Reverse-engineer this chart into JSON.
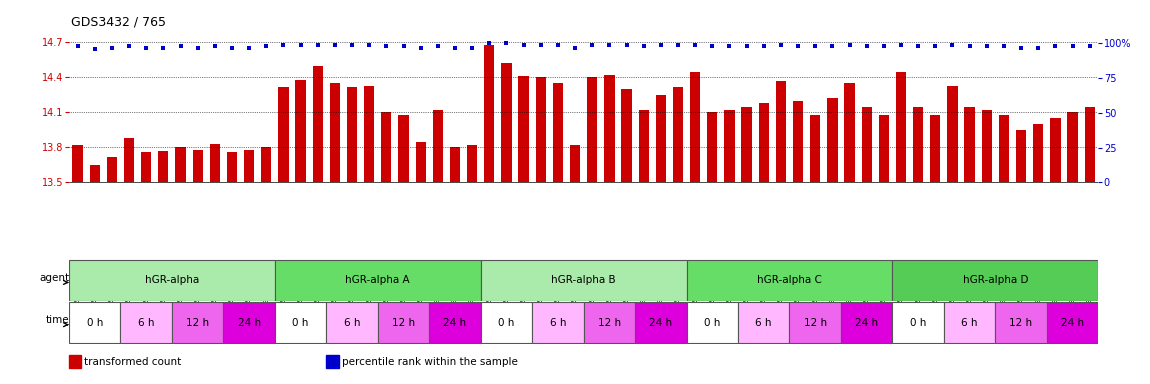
{
  "title": "GDS3432 / 765",
  "samples": [
    "GSM154259",
    "GSM154260",
    "GSM154261",
    "GSM154274",
    "GSM154275",
    "GSM154276",
    "GSM154289",
    "GSM154290",
    "GSM154291",
    "GSM154304",
    "GSM154305",
    "GSM154306",
    "GSM154262",
    "GSM154263",
    "GSM154264",
    "GSM154277",
    "GSM154278",
    "GSM154279",
    "GSM154292",
    "GSM154293",
    "GSM154294",
    "GSM154307",
    "GSM154308",
    "GSM154309",
    "GSM154265",
    "GSM154266",
    "GSM154267",
    "GSM154280",
    "GSM154281",
    "GSM154282",
    "GSM154295",
    "GSM154296",
    "GSM154297",
    "GSM154310",
    "GSM154311",
    "GSM154312",
    "GSM154268",
    "GSM154269",
    "GSM154270",
    "GSM154283",
    "GSM154284",
    "GSM154285",
    "GSM154298",
    "GSM154299",
    "GSM154300",
    "GSM154313",
    "GSM154314",
    "GSM154315",
    "GSM154271",
    "GSM154272",
    "GSM154273",
    "GSM154286",
    "GSM154287",
    "GSM154288",
    "GSM154301",
    "GSM154302",
    "GSM154303",
    "GSM154316",
    "GSM154317",
    "GSM154318"
  ],
  "bar_values": [
    13.82,
    13.65,
    13.72,
    13.88,
    13.76,
    13.77,
    13.8,
    13.78,
    13.83,
    13.76,
    13.78,
    13.8,
    14.32,
    14.38,
    14.5,
    14.35,
    14.32,
    14.33,
    14.1,
    14.08,
    13.85,
    14.12,
    13.8,
    13.82,
    14.68,
    14.52,
    14.41,
    14.4,
    14.35,
    13.82,
    14.4,
    14.42,
    14.3,
    14.12,
    14.25,
    14.32,
    14.45,
    14.1,
    14.12,
    14.15,
    14.18,
    14.37,
    14.2,
    14.08,
    14.22,
    14.35,
    14.15,
    14.08,
    14.45,
    14.15,
    14.08,
    14.33,
    14.15,
    14.12,
    14.08,
    13.95,
    14.0,
    14.05,
    14.1,
    14.15
  ],
  "percentile_values": [
    98,
    96,
    97,
    98,
    97,
    97,
    98,
    97,
    98,
    97,
    97,
    98,
    99,
    99,
    99,
    99,
    99,
    99,
    98,
    98,
    97,
    98,
    97,
    97,
    100,
    100,
    99,
    99,
    99,
    97,
    99,
    99,
    99,
    98,
    99,
    99,
    99,
    98,
    98,
    98,
    98,
    99,
    98,
    98,
    98,
    99,
    98,
    98,
    99,
    98,
    98,
    99,
    98,
    98,
    98,
    97,
    97,
    98,
    98,
    98
  ],
  "ylim_left": [
    13.5,
    14.75
  ],
  "ylim_right": [
    0,
    105
  ],
  "yticks_left": [
    13.5,
    13.8,
    14.1,
    14.4,
    14.7
  ],
  "yticks_right": [
    0,
    25,
    50,
    75,
    100
  ],
  "bar_color": "#CC0000",
  "dot_color": "#0000CC",
  "agent_groups": [
    {
      "label": "hGR-alpha",
      "start": 0,
      "end": 12,
      "color": "#AAEAAA"
    },
    {
      "label": "hGR-alpha A",
      "start": 12,
      "end": 24,
      "color": "#66DD66"
    },
    {
      "label": "hGR-alpha B",
      "start": 24,
      "end": 36,
      "color": "#AAEAAA"
    },
    {
      "label": "hGR-alpha C",
      "start": 36,
      "end": 48,
      "color": "#66DD66"
    },
    {
      "label": "hGR-alpha D",
      "start": 48,
      "end": 60,
      "color": "#55CC55"
    }
  ],
  "time_groups": [
    {
      "label": "0 h",
      "start": 0,
      "end": 3,
      "color": "#FFFFFF"
    },
    {
      "label": "6 h",
      "start": 3,
      "end": 6,
      "color": "#FFB8FF"
    },
    {
      "label": "12 h",
      "start": 6,
      "end": 9,
      "color": "#EE66EE"
    },
    {
      "label": "24 h",
      "start": 9,
      "end": 12,
      "color": "#DD00DD"
    },
    {
      "label": "0 h",
      "start": 12,
      "end": 15,
      "color": "#FFFFFF"
    },
    {
      "label": "6 h",
      "start": 15,
      "end": 18,
      "color": "#FFB8FF"
    },
    {
      "label": "12 h",
      "start": 18,
      "end": 21,
      "color": "#EE66EE"
    },
    {
      "label": "24 h",
      "start": 21,
      "end": 24,
      "color": "#DD00DD"
    },
    {
      "label": "0 h",
      "start": 24,
      "end": 27,
      "color": "#FFFFFF"
    },
    {
      "label": "6 h",
      "start": 27,
      "end": 30,
      "color": "#FFB8FF"
    },
    {
      "label": "12 h",
      "start": 30,
      "end": 33,
      "color": "#EE66EE"
    },
    {
      "label": "24 h",
      "start": 33,
      "end": 36,
      "color": "#DD00DD"
    },
    {
      "label": "0 h",
      "start": 36,
      "end": 39,
      "color": "#FFFFFF"
    },
    {
      "label": "6 h",
      "start": 39,
      "end": 42,
      "color": "#FFB8FF"
    },
    {
      "label": "12 h",
      "start": 42,
      "end": 45,
      "color": "#EE66EE"
    },
    {
      "label": "24 h",
      "start": 45,
      "end": 48,
      "color": "#DD00DD"
    },
    {
      "label": "0 h",
      "start": 48,
      "end": 51,
      "color": "#FFFFFF"
    },
    {
      "label": "6 h",
      "start": 51,
      "end": 54,
      "color": "#FFB8FF"
    },
    {
      "label": "12 h",
      "start": 54,
      "end": 57,
      "color": "#EE66EE"
    },
    {
      "label": "24 h",
      "start": 57,
      "end": 60,
      "color": "#DD00DD"
    }
  ],
  "legend_items": [
    {
      "label": "transformed count",
      "color": "#CC0000"
    },
    {
      "label": "percentile rank within the sample",
      "color": "#0000CC"
    }
  ],
  "background_color": "#FFFFFF",
  "agent_label": "agent",
  "time_label": "time"
}
